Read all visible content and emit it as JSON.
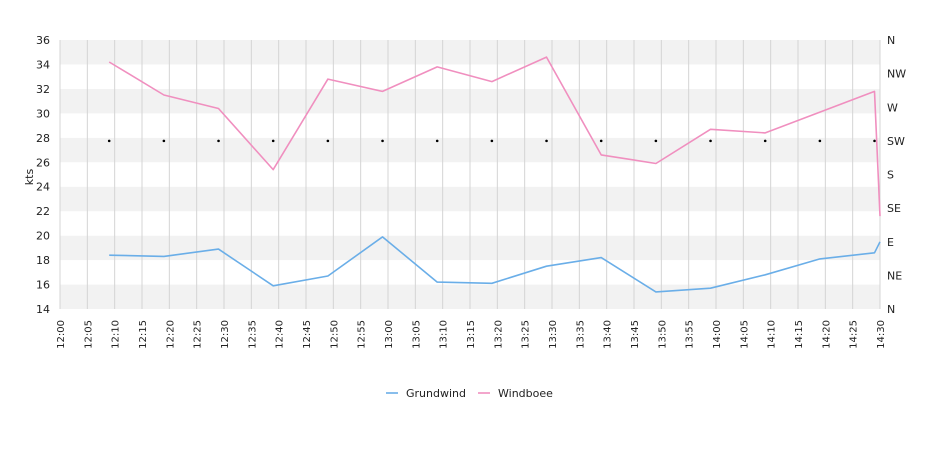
{
  "chart_data": {
    "type": "line",
    "ylabel": "kts",
    "ylim": [
      14,
      36
    ],
    "yticks": [
      14,
      16,
      18,
      20,
      22,
      24,
      26,
      28,
      30,
      32,
      34,
      36
    ],
    "right_axis_labels": [
      "N",
      "NE",
      "E",
      "SE",
      "S",
      "SW",
      "W",
      "NW",
      "N"
    ],
    "xlim": [
      "12:00",
      "14:30"
    ],
    "xticks": [
      "12:00",
      "12:05",
      "12:10",
      "12:15",
      "12:20",
      "12:25",
      "12:30",
      "12:35",
      "12:40",
      "12:45",
      "12:50",
      "12:55",
      "13:00",
      "13:05",
      "13:10",
      "13:15",
      "13:20",
      "13:25",
      "13:30",
      "13:35",
      "13:40",
      "13:45",
      "13:50",
      "13:55",
      "14:00",
      "14:05",
      "14:10",
      "14:15",
      "14:20",
      "14:25",
      "14:30"
    ],
    "grid": true,
    "legend_position": "bottom",
    "series": [
      {
        "name": "Grundwind",
        "color": "#6aaee8",
        "points": [
          [
            "12:09",
            18.4
          ],
          [
            "12:19",
            18.3
          ],
          [
            "12:29",
            18.9
          ],
          [
            "12:39",
            15.9
          ],
          [
            "12:49",
            16.7
          ],
          [
            "12:59",
            19.9
          ],
          [
            "13:09",
            16.2
          ],
          [
            "13:19",
            16.1
          ],
          [
            "13:29",
            17.5
          ],
          [
            "13:39",
            18.2
          ],
          [
            "13:49",
            15.4
          ],
          [
            "13:59",
            15.7
          ],
          [
            "14:09",
            16.8
          ],
          [
            "14:19",
            18.1
          ],
          [
            "14:29",
            18.6
          ],
          [
            "14:30",
            19.5
          ]
        ]
      },
      {
        "name": "Windboee",
        "color": "#f08fbf",
        "points": [
          [
            "12:09",
            34.2
          ],
          [
            "12:19",
            31.5
          ],
          [
            "12:29",
            30.4
          ],
          [
            "12:39",
            25.4
          ],
          [
            "12:49",
            32.8
          ],
          [
            "12:59",
            31.8
          ],
          [
            "13:09",
            33.8
          ],
          [
            "13:19",
            32.6
          ],
          [
            "13:29",
            34.6
          ],
          [
            "13:39",
            26.6
          ],
          [
            "13:49",
            25.9
          ],
          [
            "13:59",
            28.7
          ],
          [
            "14:09",
            28.4
          ],
          [
            "14:19",
            30.1
          ],
          [
            "14:29",
            31.8
          ],
          [
            "14:30",
            21.6
          ]
        ]
      }
    ],
    "direction_marker": {
      "value": "SW",
      "times": [
        "12:09",
        "12:19",
        "12:29",
        "12:39",
        "12:49",
        "12:59",
        "13:09",
        "13:19",
        "13:29",
        "13:39",
        "13:49",
        "13:59",
        "14:09",
        "14:19",
        "14:29"
      ]
    }
  }
}
